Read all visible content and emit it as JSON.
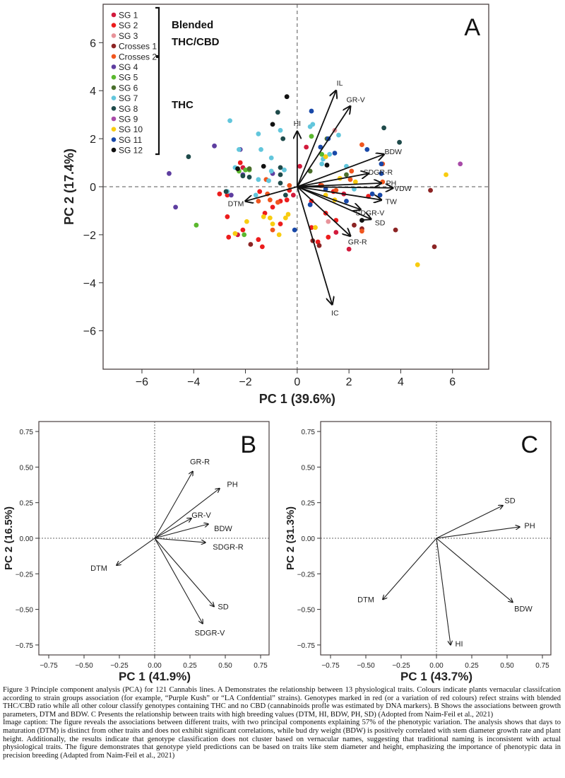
{
  "chart_data": [
    {
      "type": "scatter",
      "panel_label": "A",
      "xlabel": "PC 1 (39.6%)",
      "ylabel": "PC 2 (17.4%)",
      "xlim": [
        -7.5,
        7.4
      ],
      "ylim": [
        -7.6,
        7.6
      ],
      "xticks": [
        -6,
        -4,
        -2,
        0,
        2,
        4,
        6
      ],
      "yticks": [
        -6,
        -4,
        -2,
        0,
        2,
        4,
        6
      ],
      "xtick_labels": [
        "−6",
        "−4",
        "−2",
        "0",
        "2",
        "4",
        "6"
      ],
      "ytick_labels": [
        "−6",
        "−4",
        "−2",
        "0",
        "2",
        "4",
        "6"
      ],
      "reference_lines": {
        "x": 0,
        "y": 0,
        "style": "dashed"
      },
      "legend": {
        "position": "top-left",
        "entries": [
          {
            "name": "SG 1",
            "color": "#d21a3c"
          },
          {
            "name": "SG 2",
            "color": "#ec1c1c"
          },
          {
            "name": "SG 3",
            "color": "#e8939a"
          },
          {
            "name": "Crosses 1",
            "color": "#8c2424"
          },
          {
            "name": "Crosses 2",
            "color": "#f0561e"
          },
          {
            "name": "SG 4",
            "color": "#5e3ea0"
          },
          {
            "name": "SG 5",
            "color": "#5ab82e"
          },
          {
            "name": "SG 6",
            "color": "#4a6e2c"
          },
          {
            "name": "SG 7",
            "color": "#62c6dc"
          },
          {
            "name": "SG 8",
            "color": "#1e4a4a"
          },
          {
            "name": "SG 9",
            "color": "#a84aa8"
          },
          {
            "name": "SG 10",
            "color": "#f8cc10"
          },
          {
            "name": "SG 11",
            "color": "#1848a8"
          },
          {
            "name": "SG 12",
            "color": "#111111"
          }
        ],
        "group_labels": [
          "Blended",
          "THC/CBD",
          "THC"
        ]
      },
      "vectors": [
        {
          "label": "IL",
          "x": 1.5,
          "y": 4.0
        },
        {
          "label": "GR-V",
          "x": 2.05,
          "y": 3.35
        },
        {
          "label": "HI",
          "x": 0.0,
          "y": 2.3
        },
        {
          "label": "BDW",
          "x": 3.35,
          "y": 1.35
        },
        {
          "label": "SDGR-R",
          "x": 2.75,
          "y": 0.55
        },
        {
          "label": "PH",
          "x": 3.25,
          "y": 0.15
        },
        {
          "label": "VDW",
          "x": 3.7,
          "y": -0.05
        },
        {
          "label": "TW",
          "x": 3.25,
          "y": -0.55
        },
        {
          "label": "SDGR-V",
          "x": 2.45,
          "y": -0.95
        },
        {
          "label": "SD",
          "x": 2.85,
          "y": -1.35
        },
        {
          "label": "GR-R",
          "x": 2.05,
          "y": -2.05
        },
        {
          "label": "IC",
          "x": 1.35,
          "y": -4.9
        },
        {
          "label": "DTM",
          "x": -2.0,
          "y": -0.6
        }
      ],
      "series": [
        {
          "name": "SG 1",
          "points": [
            [
              0.35,
              1.65
            ],
            [
              0.1,
              0.85
            ],
            [
              -2.3,
              -2.0
            ],
            [
              2.0,
              -2.6
            ],
            [
              1.8,
              -0.3
            ],
            [
              1.5,
              -1.9
            ],
            [
              -0.15,
              -0.35
            ],
            [
              -2.1,
              0.8
            ]
          ]
        },
        {
          "name": "SG 2",
          "points": [
            [
              -2.2,
              1.0
            ],
            [
              -2.7,
              -0.35
            ],
            [
              -2.7,
              -1.25
            ],
            [
              -2.1,
              -1.8
            ],
            [
              -2.65,
              -2.1
            ],
            [
              -1.25,
              -1.1
            ],
            [
              -1.5,
              -2.2
            ],
            [
              -1.35,
              -2.5
            ],
            [
              -0.95,
              -0.85
            ],
            [
              -0.65,
              -0.6
            ],
            [
              -0.65,
              -1.55
            ],
            [
              -1.45,
              -0.2
            ],
            [
              -0.4,
              -0.55
            ],
            [
              0.55,
              -0.6
            ],
            [
              1.1,
              -1.1
            ],
            [
              1.5,
              -1.4
            ],
            [
              0.9,
              0.05
            ],
            [
              1.4,
              -0.2
            ],
            [
              -3.0,
              -0.3
            ],
            [
              0.8,
              -2.3
            ],
            [
              1.2,
              -2.1
            ],
            [
              -0.3,
              -0.15
            ],
            [
              0.55,
              -1.7
            ],
            [
              2.75,
              -0.4
            ]
          ]
        },
        {
          "name": "SG 3",
          "points": [
            [
              1.45,
              2.35
            ],
            [
              1.2,
              -1.45
            ]
          ]
        },
        {
          "name": "Crosses 1",
          "points": [
            [
              -1.8,
              -2.4
            ],
            [
              0.6,
              -2.25
            ],
            [
              0.85,
              -2.45
            ],
            [
              2.2,
              -1.6
            ],
            [
              2.5,
              -1.75
            ],
            [
              3.8,
              -1.8
            ],
            [
              5.15,
              -0.15
            ],
            [
              5.3,
              -2.5
            ]
          ]
        },
        {
          "name": "Crosses 2",
          "points": [
            [
              -0.3,
              0.05
            ],
            [
              0.95,
              0.05
            ],
            [
              2.5,
              1.75
            ],
            [
              2.1,
              0.65
            ],
            [
              3.3,
              0.95
            ],
            [
              3.3,
              0.2
            ],
            [
              2.5,
              -1.85
            ],
            [
              2.05,
              0.3
            ],
            [
              -1.15,
              -0.3
            ],
            [
              -1.05,
              -0.55
            ],
            [
              -1.5,
              -0.6
            ],
            [
              -0.75,
              -0.65
            ],
            [
              -0.95,
              -1.8
            ],
            [
              -1.2,
              0.3
            ],
            [
              1.5,
              -0.15
            ]
          ]
        },
        {
          "name": "SG 4",
          "points": [
            [
              -4.95,
              0.55
            ],
            [
              -3.2,
              1.7
            ],
            [
              -2.2,
              1.55
            ],
            [
              -2.1,
              0.5
            ],
            [
              -4.7,
              -0.85
            ],
            [
              -2.55,
              -0.35
            ],
            [
              -0.95,
              0.55
            ]
          ]
        },
        {
          "name": "SG 5",
          "points": [
            [
              -3.9,
              -1.6
            ],
            [
              -2.05,
              -2.0
            ],
            [
              -2.0,
              0.7
            ],
            [
              -1.85,
              0.7
            ],
            [
              -2.25,
              0.65
            ],
            [
              0.95,
              1.35
            ],
            [
              0.55,
              2.1
            ]
          ]
        },
        {
          "name": "SG 6",
          "points": [
            [
              1.15,
              2.0
            ],
            [
              -1.85,
              0.75
            ],
            [
              0.5,
              0.65
            ],
            [
              1.9,
              0.5
            ]
          ]
        },
        {
          "name": "SG 7",
          "points": [
            [
              -2.6,
              2.75
            ],
            [
              -1.5,
              2.2
            ],
            [
              -2.25,
              1.55
            ],
            [
              -1.4,
              1.55
            ],
            [
              -1.0,
              1.2
            ],
            [
              -1.0,
              0.65
            ],
            [
              -0.5,
              0.7
            ],
            [
              -1.1,
              0.25
            ],
            [
              -2.7,
              -0.2
            ],
            [
              -1.6,
              -0.35
            ],
            [
              0.6,
              2.6
            ],
            [
              0.5,
              2.5
            ],
            [
              1.0,
              1.15
            ],
            [
              1.6,
              2.15
            ],
            [
              1.9,
              0.85
            ],
            [
              2.2,
              -0.1
            ],
            [
              1.25,
              1.35
            ],
            [
              0.95,
              0.95
            ],
            [
              -0.65,
              2.35
            ],
            [
              -2.4,
              0.8
            ],
            [
              -1.5,
              0.3
            ]
          ]
        },
        {
          "name": "SG 8",
          "points": [
            [
              -4.2,
              1.25
            ],
            [
              -2.75,
              -0.2
            ],
            [
              -0.45,
              -0.35
            ],
            [
              -0.75,
              3.1
            ],
            [
              -0.55,
              2.0
            ],
            [
              -0.65,
              0.8
            ],
            [
              -0.65,
              0.5
            ],
            [
              -0.65,
              0.15
            ],
            [
              -2.1,
              0.45
            ],
            [
              3.35,
              2.45
            ],
            [
              3.95,
              1.85
            ],
            [
              -1.85,
              0.4
            ]
          ]
        },
        {
          "name": "SG 9",
          "points": [
            [
              6.3,
              0.95
            ]
          ]
        },
        {
          "name": "SG 10",
          "points": [
            [
              1.1,
              1.25
            ],
            [
              1.65,
              0.35
            ],
            [
              1.1,
              -0.35
            ],
            [
              0.7,
              -1.7
            ],
            [
              -0.45,
              -1.3
            ],
            [
              -0.35,
              -1.15
            ],
            [
              -1.95,
              -1.45
            ],
            [
              -2.4,
              -1.95
            ],
            [
              -0.7,
              -2.0
            ],
            [
              -1.3,
              -1.25
            ],
            [
              -0.95,
              -1.55
            ],
            [
              1.45,
              -0.55
            ],
            [
              2.25,
              0.2
            ],
            [
              5.75,
              0.5
            ],
            [
              4.65,
              -3.25
            ],
            [
              -1.05,
              -1.3
            ]
          ]
        },
        {
          "name": "SG 11",
          "points": [
            [
              0.55,
              3.15
            ],
            [
              1.2,
              2.0
            ],
            [
              1.45,
              1.4
            ],
            [
              3.25,
              0.95
            ],
            [
              3.25,
              0.55
            ],
            [
              0.9,
              1.65
            ],
            [
              1.1,
              -0.1
            ],
            [
              1.9,
              -0.6
            ],
            [
              3.2,
              -0.35
            ],
            [
              2.7,
              1.55
            ],
            [
              -0.1,
              -1.8
            ],
            [
              2.9,
              -0.3
            ],
            [
              0.5,
              -0.75
            ]
          ]
        },
        {
          "name": "SG 12",
          "points": [
            [
              -0.4,
              3.75
            ],
            [
              -0.95,
              2.6
            ],
            [
              -2.3,
              0.75
            ],
            [
              -1.3,
              0.85
            ],
            [
              2.5,
              -1.4
            ],
            [
              1.15,
              0.9
            ]
          ]
        }
      ]
    },
    {
      "type": "biplot",
      "panel_label": "B",
      "xlabel": "PC 1 (41.9%)",
      "ylabel": "PC 2  (16.5%)",
      "xlim": [
        -0.82,
        0.81
      ],
      "ylim": [
        -0.82,
        0.82
      ],
      "xticks": [
        -0.75,
        -0.5,
        -0.25,
        0.0,
        0.25,
        0.5,
        0.75
      ],
      "yticks": [
        -0.75,
        -0.5,
        -0.25,
        0.0,
        0.25,
        0.5,
        0.75
      ],
      "xtick_labels": [
        "−0.75",
        "−0.50",
        "−0.25",
        "0.00",
        "0.25",
        "0.50",
        "0.75"
      ],
      "ytick_labels": [
        "−0.75",
        "−0.50",
        "−0.25",
        "0.00",
        "0.25",
        "0.50",
        "0.75"
      ],
      "reference_lines": {
        "x": 0,
        "y": 0,
        "style": "dotted"
      },
      "vectors": [
        {
          "label": "GR-R",
          "x": 0.27,
          "y": 0.47
        },
        {
          "label": "PH",
          "x": 0.46,
          "y": 0.35
        },
        {
          "label": "GR-V",
          "x": 0.26,
          "y": 0.14
        },
        {
          "label": "BDW",
          "x": 0.38,
          "y": 0.1
        },
        {
          "label": "SDGR-R",
          "x": 0.36,
          "y": -0.03
        },
        {
          "label": "DTM",
          "x": -0.27,
          "y": -0.19
        },
        {
          "label": "SD",
          "x": 0.42,
          "y": -0.48
        },
        {
          "label": "SDGR-V",
          "x": 0.34,
          "y": -0.6
        }
      ]
    },
    {
      "type": "biplot",
      "panel_label": "C",
      "xlabel": "PC 1 (43.7%)",
      "ylabel": "PC 2  (31.3%)",
      "xlim": [
        -0.82,
        0.81
      ],
      "ylim": [
        -0.82,
        0.82
      ],
      "xticks": [
        -0.75,
        -0.5,
        -0.25,
        0.0,
        0.25,
        0.5,
        0.75
      ],
      "yticks": [
        -0.75,
        -0.5,
        -0.25,
        0.0,
        0.25,
        0.5,
        0.75
      ],
      "xtick_labels": [
        "−0.75",
        "−0.50",
        "−0.25",
        "0.00",
        "0.25",
        "0.50",
        "0.75"
      ],
      "ytick_labels": [
        "−0.75",
        "−0.50",
        "−0.25",
        "0.00",
        "0.25",
        "0.50",
        "0.75"
      ],
      "reference_lines": {
        "x": 0,
        "y": 0,
        "style": "dotted"
      },
      "vectors": [
        {
          "label": "SD",
          "x": 0.47,
          "y": 0.23
        },
        {
          "label": "PH",
          "x": 0.59,
          "y": 0.08
        },
        {
          "label": "DTM",
          "x": -0.38,
          "y": -0.43
        },
        {
          "label": "BDW",
          "x": 0.54,
          "y": -0.45
        },
        {
          "label": "HI",
          "x": 0.1,
          "y": -0.75
        }
      ]
    }
  ],
  "caption": {
    "figure_text": "Figure 3 Principle component analysis (PCA) for 121 Cannabis lines. A Demonstrates the relationship between 13 physiological traits. Colours indicate plants vernacular classifcation according to strain groups association (for example, “Purple Kush” or “LA Confdential” strains). Genotypes marked in red (or a variation of red colours) refect strains with blended THC/CBD ratio while all other colour classify genotypes containing THC and no CBD (cannabinoids profle was estimated by DNA markers). B Shows the associations between growth parameters, DTM and BDW. C Presents the relationship between traits with high breeding values (DTM, HI, BDW, PH, SD) (Adopted from Naim-Feil et al., 2021)",
    "image_caption": "Image caption: The figure reveals the associations between different traits, with two principal components explaining 57% of the phenotypic variation. The analysis shows that days to maturation (DTM) is distinct from other traits and does not exhibit significant correlations, while bud dry weight (BDW) is positively correlated with stem diameter growth rate and plant height. Additionally, the results indicate that genotype classification does not cluster based on vernacular names, suggesting that traditional naming is inconsistent with actual physiological traits. The figure demonstrates that genotype yield predictions can be based on traits like stem diameter and height, emphasizing the importance of phenotypic data in precision breeding (Adapted from Naim-Feil et al., 2021)"
  }
}
